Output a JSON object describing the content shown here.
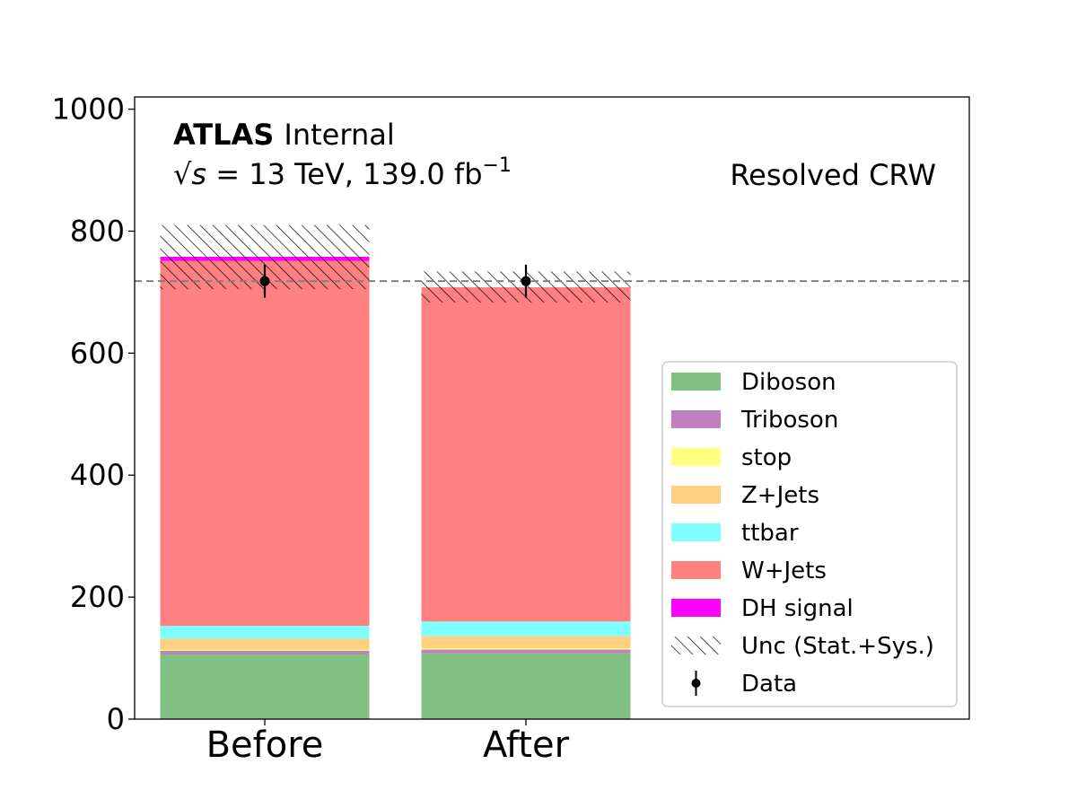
{
  "chart_data": {
    "type": "bar",
    "stacked": true,
    "categories": [
      "Before",
      "After"
    ],
    "series": [
      {
        "name": "Diboson",
        "color": "#80c080",
        "values": [
          106,
          108
        ]
      },
      {
        "name": "Triboson",
        "color": "#c080c0",
        "values": [
          6,
          6
        ]
      },
      {
        "name": "stop",
        "color": "#ffff80",
        "values": [
          2,
          2
        ]
      },
      {
        "name": "Z+Jets",
        "color": "#ffd080",
        "values": [
          18,
          20
        ]
      },
      {
        "name": "ttbar",
        "color": "#80ffff",
        "values": [
          21,
          24
        ]
      },
      {
        "name": "W+Jets",
        "color": "#ff8080",
        "values": [
          598,
          548
        ]
      },
      {
        "name": "DH signal",
        "color": "#ff00ff",
        "values": [
          7,
          0
        ]
      }
    ],
    "uncertainty": {
      "label": "Unc (Stat.+Sys.)",
      "lower": [
        705,
        683
      ],
      "upper": [
        810,
        734
      ]
    },
    "data": {
      "label": "Data",
      "values": [
        718,
        718
      ],
      "errors": [
        27,
        27
      ]
    },
    "reference_line": 718,
    "ylim": [
      0,
      1020
    ],
    "yticks": [
      0,
      200,
      400,
      600,
      800,
      1000
    ],
    "xlabel": "",
    "ylabel": "",
    "title": "",
    "atlas_label": "ATLAS",
    "atlas_sublabel": "Internal",
    "energy_label": "√s = 13 TeV, 139.0 fb⁻¹",
    "energy_parts": {
      "sqrt": "√",
      "s": "s",
      "middle": " = 13 TeV, 139.0 fb",
      "sup": "−1"
    },
    "region_label": "Resolved CRW",
    "legend_position": "lower-right"
  }
}
